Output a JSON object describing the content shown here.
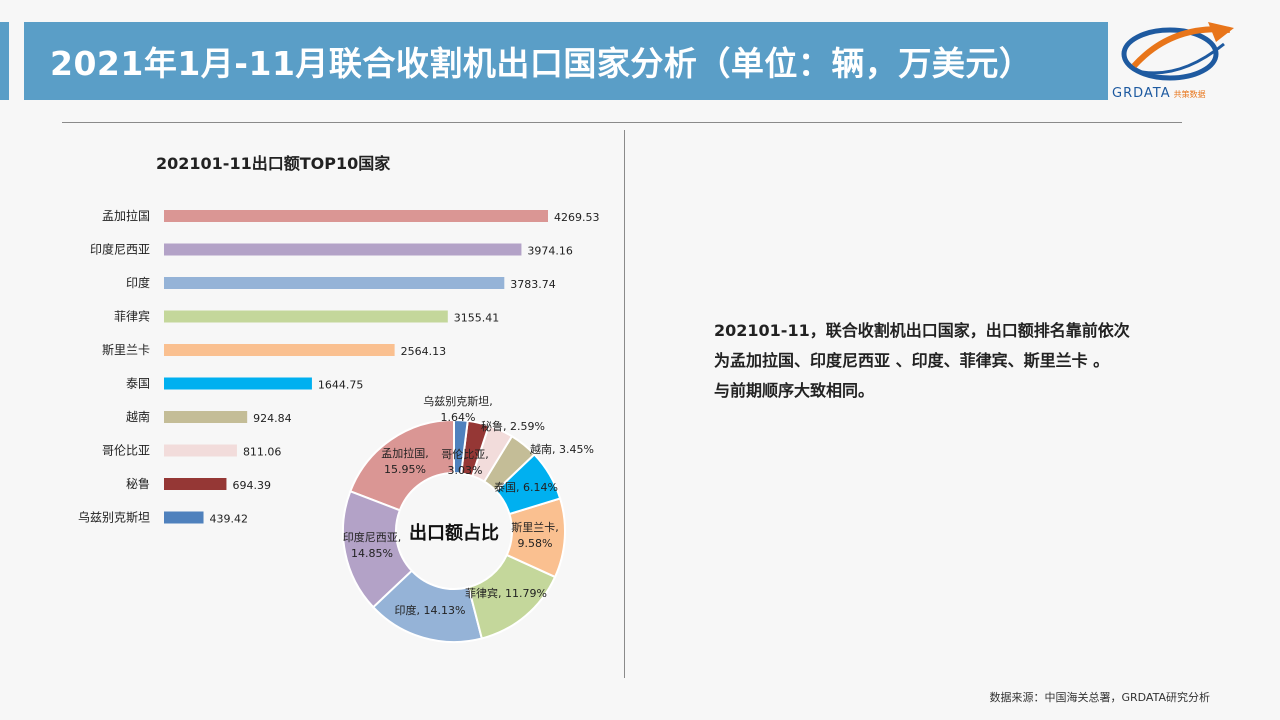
{
  "header": {
    "title": "2021年1月-11月联合收割机出口国家分析（单位：辆，万美元）",
    "logo_text": "GRDATA",
    "logo_subtext": "共策数据"
  },
  "chart_title": "202101-11出口额TOP10国家",
  "chart_data": [
    {
      "type": "bar",
      "orientation": "horizontal",
      "title": "202101-11出口额TOP10国家",
      "categories": [
        "孟加拉国",
        "印度尼西亚",
        "印度",
        "菲律宾",
        "斯里兰卡",
        "泰国",
        "越南",
        "哥伦比亚",
        "秘鲁",
        "乌兹别克斯坦"
      ],
      "values": [
        4269.53,
        3974.16,
        3783.74,
        3155.41,
        2564.13,
        1644.75,
        924.84,
        811.06,
        694.39,
        439.42
      ],
      "value_labels": [
        "4269.53",
        "3974.16",
        "3783.74",
        "3155.41",
        "2564.13",
        "1644.75",
        "924.84",
        "811.06",
        "694.39",
        "439.42"
      ],
      "colors": [
        "#da9694",
        "#b3a2c7",
        "#95b3d7",
        "#c4d79b",
        "#fac090",
        "#00b0f0",
        "#c4bd97",
        "#f2dcdb",
        "#953735",
        "#4f81bd"
      ]
    },
    {
      "type": "pie",
      "donut": true,
      "center_label": "出口额占比",
      "categories": [
        "孟加拉国",
        "印度尼西亚",
        "印度",
        "菲律宾",
        "斯里兰卡",
        "泰国",
        "越南",
        "哥伦比亚",
        "秘鲁",
        "乌兹别克斯坦"
      ],
      "values": [
        15.95,
        14.85,
        14.13,
        11.79,
        9.58,
        6.14,
        3.45,
        3.03,
        2.59,
        1.64
      ],
      "label_lines": [
        [
          "孟加拉国,",
          "15.95%"
        ],
        [
          "印度尼西亚,",
          "14.85%"
        ],
        [
          "印度, 14.13%"
        ],
        [
          "菲律宾, 11.79%"
        ],
        [
          "斯里兰卡,",
          "9.58%"
        ],
        [
          "泰国, 6.14%"
        ],
        [
          "越南, 3.45%"
        ],
        [
          "哥伦比亚,",
          "3.03%"
        ],
        [
          "秘鲁, 2.59%"
        ],
        [
          "乌兹别克斯坦,",
          "1.64%"
        ]
      ],
      "colors": [
        "#da9694",
        "#b3a2c7",
        "#95b3d7",
        "#c4d79b",
        "#fac090",
        "#00b0f0",
        "#c4bd97",
        "#f2dcdb",
        "#953735",
        "#4f81bd"
      ]
    }
  ],
  "summary": {
    "line1": "202101-11，联合收割机出口国家，出口额排名靠前依次",
    "line2": "为孟加拉国、印度尼西亚 、印度、菲律宾、斯里兰卡 。",
    "line3": "与前期顺序大致相同。"
  },
  "source": "数据来源：中国海关总署，GRDATA研究分析"
}
